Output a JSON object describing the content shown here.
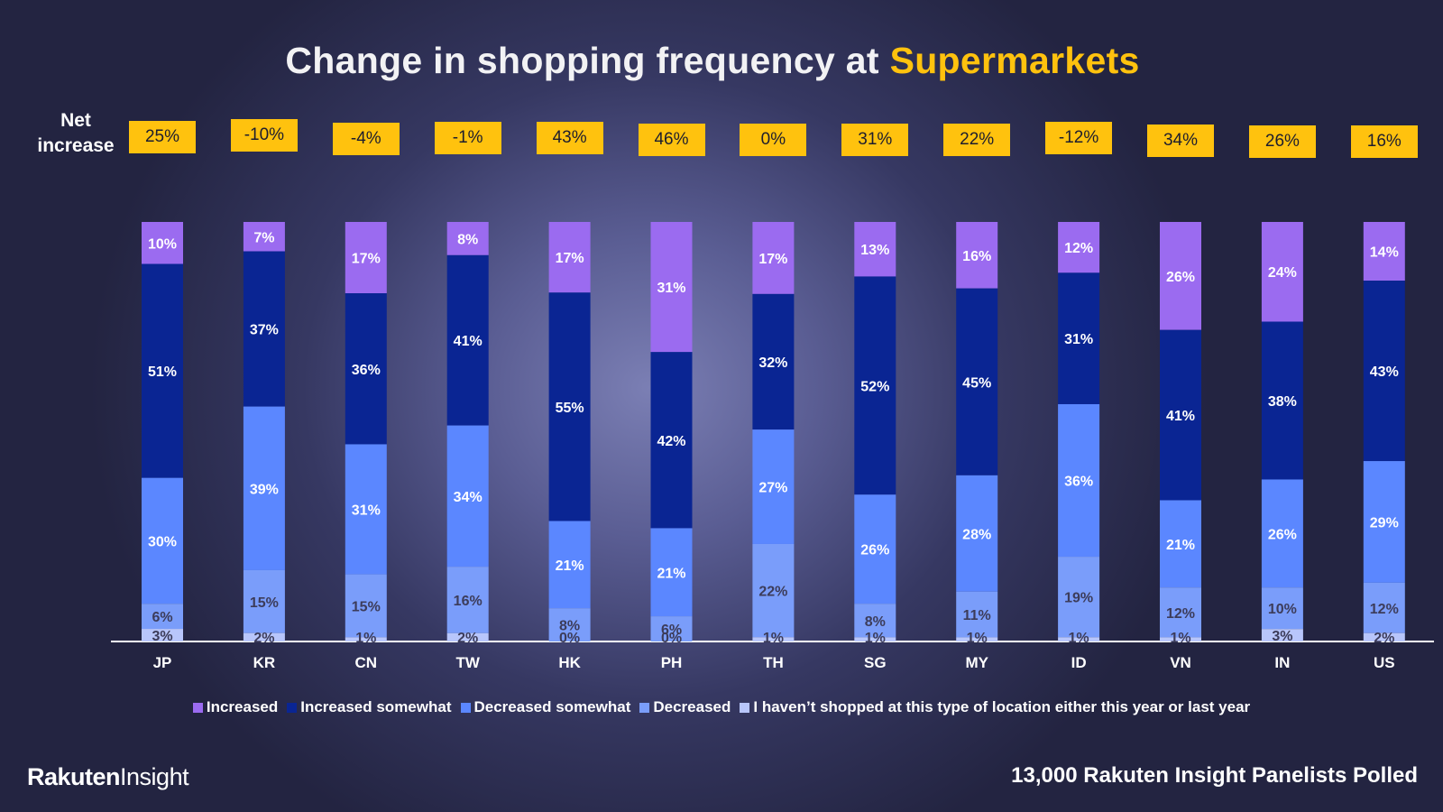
{
  "title": {
    "prefix": "Change in shopping frequency at",
    "highlight": "Supermarkets"
  },
  "net_label": "Net increase",
  "footer": {
    "brand_bold": "Rakuten",
    "brand_light": "Insight",
    "note": "13,000  Rakuten Insight Panelists Polled"
  },
  "colors": {
    "title_highlight": "#ffc20e",
    "net_box": "#ffc20e",
    "increased": "#9b6bf0",
    "increased_somewhat": "#0a2593",
    "decreased_somewhat": "#5b87ff",
    "decreased": "#7a9dfa",
    "not_shopped": "#b8c6fb"
  },
  "chart_data": {
    "type": "bar",
    "stacked": true,
    "title": "Change in shopping frequency at Supermarkets",
    "categories": [
      "JP",
      "KR",
      "CN",
      "TW",
      "HK",
      "PH",
      "TH",
      "SG",
      "MY",
      "ID",
      "VN",
      "IN",
      "US"
    ],
    "net_increase": [
      "25%",
      "-10%",
      "-4%",
      "-1%",
      "43%",
      "46%",
      "0%",
      "31%",
      "22%",
      "-12%",
      "34%",
      "26%",
      "16%"
    ],
    "series": [
      {
        "name": "Increased",
        "values": [
          10,
          7,
          17,
          8,
          17,
          31,
          17,
          13,
          16,
          12,
          26,
          24,
          14
        ]
      },
      {
        "name": "Increased somewhat",
        "values": [
          51,
          37,
          36,
          41,
          55,
          42,
          32,
          52,
          45,
          31,
          41,
          38,
          43
        ]
      },
      {
        "name": "Decreased somewhat",
        "values": [
          30,
          39,
          31,
          34,
          21,
          21,
          27,
          26,
          28,
          36,
          21,
          26,
          29
        ]
      },
      {
        "name": "Decreased",
        "values": [
          6,
          15,
          15,
          16,
          8,
          6,
          22,
          8,
          11,
          19,
          12,
          10,
          12
        ]
      },
      {
        "name": "I haven’t shopped at this type of location either this year or last year",
        "values": [
          3,
          2,
          1,
          2,
          0,
          0,
          1,
          1,
          1,
          1,
          1,
          3,
          2
        ]
      }
    ],
    "ylim": [
      0,
      100
    ],
    "legend_position": "bottom",
    "grid": false
  }
}
